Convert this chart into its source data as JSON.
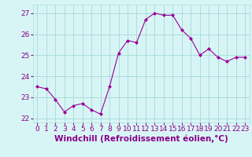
{
  "x": [
    0,
    1,
    2,
    3,
    4,
    5,
    6,
    7,
    8,
    9,
    10,
    11,
    12,
    13,
    14,
    15,
    16,
    17,
    18,
    19,
    20,
    21,
    22,
    23
  ],
  "y": [
    23.5,
    23.4,
    22.9,
    22.3,
    22.6,
    22.7,
    22.4,
    22.2,
    23.5,
    25.1,
    25.7,
    25.6,
    26.7,
    27.0,
    26.9,
    26.9,
    26.2,
    25.8,
    25.0,
    25.3,
    24.9,
    24.7,
    24.9,
    24.9
  ],
  "line_color": "#990099",
  "marker": "D",
  "marker_size": 2,
  "bg_color": "#d8f5f5",
  "grid_color": "#aadddd",
  "ylim": [
    21.8,
    27.4
  ],
  "yticks": [
    22,
    23,
    24,
    25,
    26,
    27
  ],
  "xlim": [
    -0.5,
    23.5
  ],
  "xlabel": "Windchill (Refroidissement éolien,°C)",
  "xlabel_color": "#880088",
  "tick_color": "#880088",
  "tick_labelsize": 6.5,
  "xlabel_fontsize": 7.5
}
